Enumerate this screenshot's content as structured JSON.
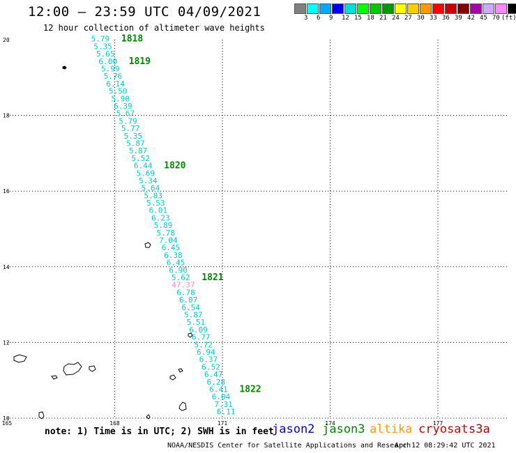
{
  "header": {
    "title": "12:00 – 23:59 UTC 04/09/2021",
    "subtitle": "12 hour collection of altimeter wave heights"
  },
  "legend": {
    "unit": "(ft)",
    "colors": [
      "#808080",
      "#00ffff",
      "#00aaff",
      "#0000ff",
      "#00dddd",
      "#00ff00",
      "#00cc00",
      "#009900",
      "#ffff00",
      "#ffcc00",
      "#ff9900",
      "#ff0000",
      "#cc0000",
      "#880000",
      "#aa00aa",
      "#ccaaff",
      "#ff88ff",
      "#000000"
    ],
    "labels": [
      "3",
      "6",
      "9",
      "12",
      "15",
      "18",
      "21",
      "24",
      "27",
      "30",
      "33",
      "36",
      "39",
      "42",
      "45",
      "70"
    ]
  },
  "map": {
    "x_ticks": [
      {
        "label": "165",
        "value": 165
      },
      {
        "label": "168",
        "value": 168
      },
      {
        "label": "171",
        "value": 171
      },
      {
        "label": "174",
        "value": 174
      },
      {
        "label": "177",
        "value": 177
      }
    ],
    "y_ticks": [
      {
        "label": "20",
        "value": 20
      },
      {
        "label": "18",
        "value": 18
      },
      {
        "label": "16",
        "value": 16
      },
      {
        "label": "14",
        "value": 14
      },
      {
        "label": "12",
        "value": 12
      },
      {
        "label": "10",
        "value": 10
      }
    ],
    "xlim": [
      165,
      179.5
    ],
    "ylim": [
      10,
      20
    ],
    "grid": true
  },
  "chart_data": {
    "type": "scatter",
    "x_axis": "longitude (E)",
    "y_axis": "latitude (N)",
    "track_start": {
      "lon": 167.6,
      "lat": 19.95
    },
    "track_end": {
      "lon": 171.1,
      "lat": 10.1
    },
    "swh_values": [
      "5.79",
      "5.35",
      "5.65",
      "6.00",
      "5.99",
      "5.76",
      "6.14",
      "5.50",
      "5.90",
      "6.39",
      "5.67",
      "5.79",
      "5.77",
      "5.35",
      "5.87",
      "5.87",
      "5.52",
      "6.44",
      "5.69",
      "5.34",
      "5.64",
      "5.83",
      "5.53",
      "6.01",
      "6.23",
      "5.89",
      "5.78",
      "7.04",
      "6.45",
      "6.38",
      "6.45",
      "6.90",
      "5.62",
      "47.37",
      "6.78",
      "6.07",
      "6.54",
      "5.87",
      "5.51",
      "6.09",
      "6.77",
      "5.72",
      "6.94",
      "6.37",
      "6.52",
      "6.47",
      "6.28",
      "6.41",
      "6.04",
      "7.31",
      "6.11"
    ],
    "swh_colors": {
      "normal": "#00cccc",
      "outlier": "#ff88cc",
      "outlier_value": "47.37"
    },
    "time_labels": [
      {
        "label": "1818",
        "index": 0
      },
      {
        "label": "1819",
        "index": 3
      },
      {
        "label": "1820",
        "index": 17
      },
      {
        "label": "1821",
        "index": 32
      },
      {
        "label": "1822",
        "index": 47
      }
    ],
    "time_label_color": "#008800"
  },
  "footer": {
    "note": "note:  1) Time is in UTC;  2) SWH is in feet",
    "satellites": [
      {
        "name": "jason2",
        "color": "#0000cc"
      },
      {
        "name": "jason3",
        "color": "#008800"
      },
      {
        "name": "altika",
        "color": "#ff9900"
      },
      {
        "name": "cryosat",
        "color": "#cc0000"
      },
      {
        "name": "s3a",
        "color": "#aa0000"
      }
    ],
    "credit": "NOAA/NESDIS Center for Satellite Applications and Research",
    "timestamp": "Apr 12 08:29:42 UTC 2021"
  }
}
